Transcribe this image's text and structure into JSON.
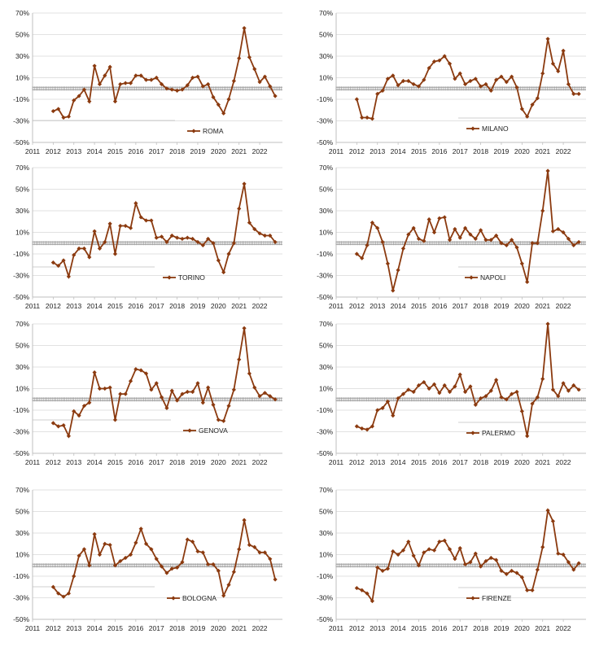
{
  "chart_data": [
    {
      "type": "line",
      "city": "ROMA",
      "legend": "ROMA",
      "x_start": 2012.0,
      "x_step": 0.25,
      "x_ticks": [
        "2011",
        "2012",
        "2013",
        "2014",
        "2015",
        "2016",
        "2017",
        "2018",
        "2019",
        "2020",
        "2021",
        "2022"
      ],
      "y_ticks": [
        "70%",
        "50%",
        "30%",
        "10%",
        "-10%",
        "-30%",
        "-50%"
      ],
      "ylim": [
        -50,
        70
      ],
      "zero_line": 0,
      "series": [
        {
          "name": "ROMA",
          "color": "#8B3A0F",
          "values": [
            -21,
            -19,
            -27,
            -26,
            -11,
            -7,
            -1,
            -12,
            21,
            4,
            12,
            20,
            -12,
            4,
            5,
            5,
            12,
            12,
            8,
            8,
            10,
            4,
            0,
            -1,
            -2,
            -1,
            3,
            10,
            11,
            2,
            4,
            -8,
            -15,
            -23,
            -10,
            7,
            28,
            56,
            29,
            18,
            6,
            11,
            2,
            -7
          ]
        }
      ]
    },
    {
      "type": "line",
      "city": "MILANO",
      "legend": "MILANO",
      "x_start": 2012.0,
      "x_step": 0.25,
      "x_ticks": [
        "2011",
        "2012",
        "2013",
        "2014",
        "2015",
        "2016",
        "2017",
        "2018",
        "2019",
        "2020",
        "2021",
        "2022"
      ],
      "y_ticks": [
        "70%",
        "50%",
        "30%",
        "10%",
        "-10%",
        "-30%",
        "-50%"
      ],
      "ylim": [
        -50,
        70
      ],
      "zero_line": 0,
      "series": [
        {
          "name": "MILANO",
          "color": "#8B3A0F",
          "values": [
            -10,
            -27,
            -27,
            -28,
            -5,
            -2,
            9,
            12,
            3,
            7,
            7,
            4,
            2,
            8,
            19,
            25,
            26,
            30,
            23,
            9,
            14,
            4,
            7,
            9,
            2,
            4,
            -2,
            8,
            11,
            6,
            11,
            1,
            -19,
            -26,
            -15,
            -9,
            14,
            46,
            23,
            16,
            35,
            4,
            -5,
            -5
          ]
        }
      ]
    },
    {
      "type": "line",
      "city": "TORINO",
      "legend": "TORINO",
      "x_start": 2012.0,
      "x_step": 0.25,
      "x_ticks": [
        "2011",
        "2012",
        "2013",
        "2014",
        "2015",
        "2016",
        "2017",
        "2018",
        "2019",
        "2020",
        "2021",
        "2022"
      ],
      "y_ticks": [
        "70%",
        "50%",
        "30%",
        "10%",
        "-10%",
        "-30%",
        "-50%"
      ],
      "ylim": [
        -50,
        70
      ],
      "zero_line": 0,
      "series": [
        {
          "name": "TORINO",
          "color": "#8B3A0F",
          "values": [
            -18,
            -21,
            -16,
            -31,
            -11,
            -5,
            -5,
            -13,
            11,
            -5,
            1,
            18,
            -10,
            16,
            16,
            14,
            37,
            24,
            21,
            21,
            5,
            6,
            1,
            7,
            5,
            4,
            5,
            4,
            1,
            -2,
            4,
            0,
            -16,
            -27,
            -10,
            0,
            32,
            55,
            19,
            13,
            9,
            7,
            7,
            1
          ]
        }
      ]
    },
    {
      "type": "line",
      "city": "NAPOLI",
      "legend": "NAPOLI",
      "x_start": 2012.0,
      "x_step": 0.25,
      "x_ticks": [
        "2011",
        "2012",
        "2013",
        "2014",
        "2015",
        "2016",
        "2017",
        "2018",
        "2019",
        "2020",
        "2021",
        "2022"
      ],
      "y_ticks": [
        "70%",
        "50%",
        "30%",
        "10%",
        "-10%",
        "-30%",
        "-50%"
      ],
      "ylim": [
        -50,
        70
      ],
      "zero_line": 0,
      "series": [
        {
          "name": "NAPOLI",
          "color": "#8B3A0F",
          "values": [
            -10,
            -14,
            -2,
            19,
            14,
            1,
            -19,
            -44,
            -25,
            -5,
            8,
            14,
            4,
            2,
            22,
            10,
            23,
            24,
            3,
            13,
            5,
            14,
            8,
            4,
            12,
            3,
            3,
            7,
            0,
            -2,
            3,
            -4,
            -19,
            -36,
            0,
            0,
            30,
            67,
            11,
            13,
            10,
            4,
            -2,
            1
          ]
        }
      ]
    },
    {
      "type": "line",
      "city": "GENOVA",
      "legend": "GENOVA",
      "x_start": 2012.0,
      "x_step": 0.25,
      "x_ticks": [
        "2011",
        "2012",
        "2013",
        "2014",
        "2015",
        "2016",
        "2017",
        "2018",
        "2019",
        "2020",
        "2021",
        "2022"
      ],
      "y_ticks": [
        "70%",
        "50%",
        "30%",
        "10%",
        "-10%",
        "-30%",
        "-50%"
      ],
      "ylim": [
        -50,
        70
      ],
      "zero_line": 0,
      "series": [
        {
          "name": "GENOVA",
          "color": "#8B3A0F",
          "values": [
            -22,
            -25,
            -24,
            -34,
            -11,
            -15,
            -6,
            -3,
            25,
            10,
            10,
            11,
            -19,
            5,
            5,
            17,
            28,
            27,
            24,
            9,
            15,
            2,
            -8,
            8,
            -1,
            5,
            7,
            7,
            15,
            -3,
            11,
            -5,
            -19,
            -20,
            -6,
            9,
            37,
            66,
            24,
            11,
            3,
            6,
            3,
            0
          ]
        }
      ]
    },
    {
      "type": "line",
      "city": "PALERMO",
      "legend": "PALERMO",
      "x_start": 2012.0,
      "x_step": 0.25,
      "x_ticks": [
        "2011",
        "2012",
        "2013",
        "2014",
        "2015",
        "2016",
        "2017",
        "2018",
        "2019",
        "2020",
        "2021",
        "2022"
      ],
      "y_ticks": [
        "70%",
        "50%",
        "30%",
        "10%",
        "-10%",
        "-30%",
        "-50%"
      ],
      "ylim": [
        -50,
        70
      ],
      "zero_line": 0,
      "series": [
        {
          "name": "PALERMO",
          "color": "#8B3A0F",
          "values": [
            -25,
            -27,
            -28,
            -25,
            -10,
            -8,
            -2,
            -15,
            1,
            5,
            9,
            7,
            13,
            16,
            10,
            14,
            6,
            13,
            7,
            12,
            23,
            7,
            12,
            -5,
            1,
            3,
            8,
            18,
            2,
            0,
            5,
            7,
            -11,
            -34,
            -4,
            2,
            19,
            70,
            9,
            3,
            15,
            8,
            13,
            9
          ]
        }
      ]
    },
    {
      "type": "line",
      "city": "BOLOGNA",
      "legend": "BOLOGNA",
      "x_start": 2012.0,
      "x_step": 0.25,
      "x_ticks": [
        "2011",
        "2012",
        "2013",
        "2014",
        "2015",
        "2016",
        "2017",
        "2018",
        "2019",
        "2020",
        "2021",
        "2022"
      ],
      "y_ticks": [
        "70%",
        "50%",
        "30%",
        "10%",
        "-10%",
        "-30%",
        "-50%"
      ],
      "ylim": [
        -50,
        70
      ],
      "zero_line": 0,
      "series": [
        {
          "name": "BOLOGNA",
          "color": "#8B3A0F",
          "values": [
            -20,
            -26,
            -29,
            -26,
            -10,
            9,
            15,
            0,
            29,
            10,
            20,
            19,
            0,
            4,
            7,
            10,
            21,
            34,
            20,
            15,
            6,
            -1,
            -7,
            -3,
            -2,
            3,
            24,
            22,
            13,
            12,
            1,
            1,
            -5,
            -28,
            -18,
            -6,
            15,
            42,
            19,
            17,
            12,
            12,
            6,
            -13
          ]
        }
      ]
    },
    {
      "type": "line",
      "city": "FIRENZE",
      "legend": "FIRENZE",
      "x_start": 2012.0,
      "x_step": 0.25,
      "x_ticks": [
        "2011",
        "2012",
        "2013",
        "2014",
        "2015",
        "2016",
        "2017",
        "2018",
        "2019",
        "2020",
        "2021",
        "2022"
      ],
      "y_ticks": [
        "70%",
        "50%",
        "30%",
        "10%",
        "-10%",
        "-30%",
        "-50%"
      ],
      "ylim": [
        -50,
        70
      ],
      "zero_line": 0,
      "series": [
        {
          "name": "FIRENZE",
          "color": "#8B3A0F",
          "values": [
            -21,
            -23,
            -26,
            -33,
            -2,
            -5,
            -3,
            13,
            10,
            14,
            22,
            9,
            0,
            12,
            15,
            14,
            22,
            23,
            15,
            6,
            16,
            1,
            3,
            11,
            -1,
            4,
            7,
            5,
            -5,
            -8,
            -5,
            -7,
            -11,
            -23,
            -23,
            -4,
            17,
            51,
            41,
            11,
            10,
            3,
            -4,
            2
          ]
        }
      ]
    }
  ]
}
